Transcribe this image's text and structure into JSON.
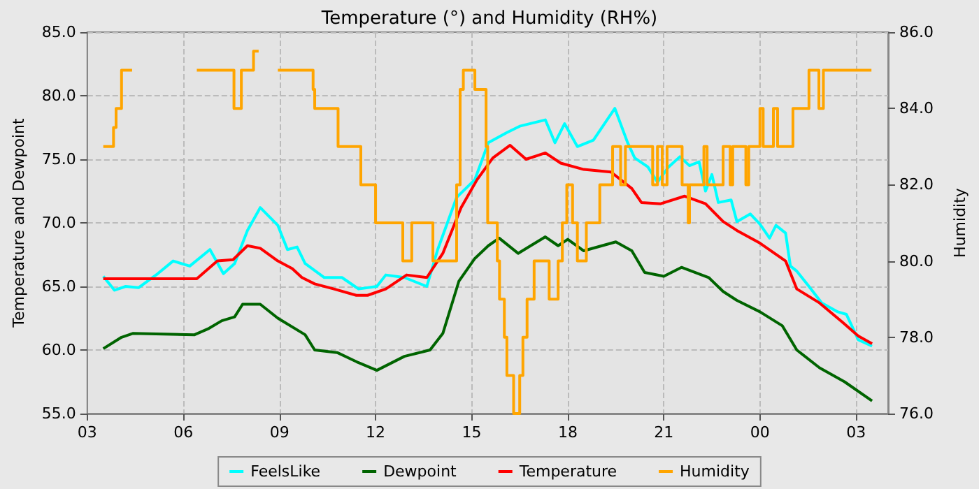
{
  "chart_data": {
    "type": "line",
    "title": "Temperature (°) and Humidity (RH%)",
    "ylabel": "Temperature and Dewpoint",
    "y2label": "Humidity",
    "xlim": [
      3,
      28
    ],
    "xticks": [
      {
        "value": 3,
        "label": "03"
      },
      {
        "value": 6,
        "label": "06"
      },
      {
        "value": 9,
        "label": "09"
      },
      {
        "value": 12,
        "label": "12"
      },
      {
        "value": 15,
        "label": "15"
      },
      {
        "value": 18,
        "label": "18"
      },
      {
        "value": 21,
        "label": "21"
      },
      {
        "value": 24,
        "label": "00"
      },
      {
        "value": 27,
        "label": "03"
      }
    ],
    "ylim": [
      55,
      85
    ],
    "yticks": [
      {
        "value": 55,
        "label": "55.0"
      },
      {
        "value": 60,
        "label": "60.0"
      },
      {
        "value": 65,
        "label": "65.0"
      },
      {
        "value": 70,
        "label": "70.0"
      },
      {
        "value": 75,
        "label": "75.0"
      },
      {
        "value": 80,
        "label": "80.0"
      },
      {
        "value": 85,
        "label": "85.0"
      }
    ],
    "y2lim": [
      76,
      86
    ],
    "y2ticks": [
      {
        "value": 76,
        "label": "76.0"
      },
      {
        "value": 78,
        "label": "78.0"
      },
      {
        "value": 80,
        "label": "80.0"
      },
      {
        "value": 82,
        "label": "82.0"
      },
      {
        "value": 84,
        "label": "84.0"
      },
      {
        "value": 86,
        "label": "86.0"
      }
    ],
    "grid": true,
    "legend": "bottom",
    "marker": "none",
    "series": [
      {
        "name": "FeelsLike",
        "color": "#00ffff",
        "x": [
          3.5,
          3.85,
          4.2,
          4.6,
          5.2,
          5.68,
          6.2,
          6.83,
          7.25,
          7.6,
          8.0,
          8.4,
          8.95,
          9.25,
          9.55,
          9.8,
          10.4,
          10.95,
          11.47,
          12.04,
          12.32,
          12.9,
          13.6,
          13.94,
          14.53,
          15.1,
          15.52,
          16.1,
          16.5,
          17.3,
          17.6,
          17.9,
          18.3,
          18.8,
          19.47,
          19.87,
          20.09,
          20.5,
          20.8,
          21.15,
          21.5,
          21.8,
          22.1,
          22.3,
          22.5,
          22.7,
          23.1,
          23.28,
          23.7,
          24.0,
          24.3,
          24.5,
          24.8,
          24.95,
          25.15,
          25.5,
          25.93,
          26.43,
          26.7,
          27.07,
          27.5
        ],
        "values": [
          65.8,
          64.7,
          65.0,
          64.9,
          66.0,
          67.0,
          66.6,
          67.9,
          66.0,
          66.8,
          69.4,
          71.2,
          69.8,
          67.9,
          68.1,
          66.8,
          65.7,
          65.7,
          64.8,
          65.0,
          65.9,
          65.7,
          65.0,
          67.9,
          72.0,
          73.4,
          76.3,
          77.1,
          77.6,
          78.1,
          76.3,
          77.8,
          76.0,
          76.5,
          79.0,
          76.3,
          75.1,
          74.4,
          73.2,
          74.4,
          75.2,
          74.5,
          74.8,
          72.5,
          73.8,
          71.6,
          71.8,
          70.1,
          70.7,
          69.9,
          68.8,
          69.8,
          69.2,
          66.6,
          66.2,
          65.1,
          63.7,
          63.0,
          62.8,
          60.8,
          60.3
        ]
      },
      {
        "name": "Dewpoint",
        "color": "#006400",
        "x": [
          3.5,
          4.07,
          4.42,
          6.35,
          6.8,
          7.2,
          7.6,
          7.85,
          8.4,
          8.95,
          9.8,
          10.1,
          10.8,
          11.47,
          12.04,
          12.9,
          13.7,
          14.1,
          14.6,
          15.1,
          15.52,
          15.86,
          16.45,
          17.3,
          17.7,
          18.0,
          18.5,
          19.5,
          20.0,
          20.4,
          21.0,
          21.55,
          22.4,
          22.85,
          23.28,
          24.0,
          24.7,
          25.15,
          25.86,
          26.64,
          27.5
        ],
        "values": [
          60.1,
          61.0,
          61.3,
          61.2,
          61.7,
          62.3,
          62.6,
          63.6,
          63.6,
          62.5,
          61.2,
          60.0,
          59.8,
          59.0,
          58.4,
          59.5,
          60.0,
          61.3,
          65.4,
          67.2,
          68.2,
          68.8,
          67.6,
          68.9,
          68.2,
          68.7,
          67.8,
          68.5,
          67.8,
          66.1,
          65.8,
          66.5,
          65.7,
          64.6,
          63.9,
          63.0,
          61.9,
          60.0,
          58.6,
          57.5,
          56.0
        ]
      },
      {
        "name": "Temperature",
        "color": "#ff0000",
        "x": [
          3.5,
          6.0,
          6.42,
          7.06,
          7.55,
          8.0,
          8.4,
          8.95,
          9.4,
          9.7,
          10.1,
          10.7,
          11.4,
          11.75,
          12.32,
          12.97,
          13.6,
          14.1,
          14.67,
          15.17,
          15.66,
          16.2,
          16.7,
          17.3,
          17.78,
          18.5,
          19.35,
          20.0,
          20.3,
          20.9,
          21.65,
          22.3,
          22.85,
          23.28,
          24.0,
          24.8,
          25.15,
          25.86,
          26.57,
          27.07,
          27.5
        ],
        "values": [
          65.6,
          65.6,
          65.6,
          67.0,
          67.1,
          68.2,
          68.0,
          67.0,
          66.4,
          65.7,
          65.2,
          64.8,
          64.3,
          64.3,
          64.8,
          65.9,
          65.7,
          67.6,
          71.2,
          73.4,
          75.1,
          76.1,
          75.0,
          75.5,
          74.7,
          74.2,
          74.0,
          72.7,
          71.6,
          71.5,
          72.1,
          71.5,
          70.1,
          69.4,
          68.4,
          67.0,
          64.8,
          63.7,
          62.2,
          61.1,
          60.5
        ]
      },
      {
        "name": "Humidity",
        "color": "#ffa500",
        "type": "step",
        "axis": "y2",
        "x": [
          3.5,
          3.82,
          3.9,
          4.07,
          4.35,
          4.4,
          6.42,
          7.58,
          7.81,
          8.19,
          8.29,
          8.35,
          8.95,
          10.05,
          10.1,
          10.83,
          11.54,
          12.0,
          12.85,
          13.13,
          13.79,
          14.53,
          14.64,
          14.74,
          15.1,
          15.45,
          15.5,
          15.8,
          15.87,
          16.02,
          16.1,
          16.31,
          16.5,
          16.6,
          16.73,
          16.95,
          17.42,
          17.7,
          17.83,
          17.97,
          18.15,
          18.3,
          18.58,
          19.0,
          19.4,
          19.65,
          19.8,
          20.65,
          20.8,
          20.95,
          21.1,
          21.57,
          21.76,
          21.8,
          22.25,
          22.35,
          22.85,
          23.07,
          23.15,
          23.56,
          23.65,
          24.0,
          24.1,
          24.42,
          24.55,
          25.03,
          25.53,
          25.84,
          25.98,
          27.48
        ],
        "values": [
          83,
          83.5,
          84,
          85,
          85,
          null,
          85,
          84,
          85,
          85.5,
          85.5,
          null,
          85,
          84.5,
          84,
          83,
          82,
          81,
          80,
          81,
          80,
          82,
          84.5,
          85,
          84.5,
          83,
          81,
          80,
          79,
          78,
          77,
          76,
          77,
          78,
          79,
          80,
          79,
          80,
          81,
          82,
          81,
          80,
          81,
          82,
          83,
          82,
          83,
          82,
          83,
          82,
          83,
          82,
          81,
          82,
          83,
          82,
          83,
          82,
          83,
          82,
          83,
          84,
          83,
          84,
          83,
          84,
          85,
          84,
          85,
          85
        ]
      }
    ]
  }
}
